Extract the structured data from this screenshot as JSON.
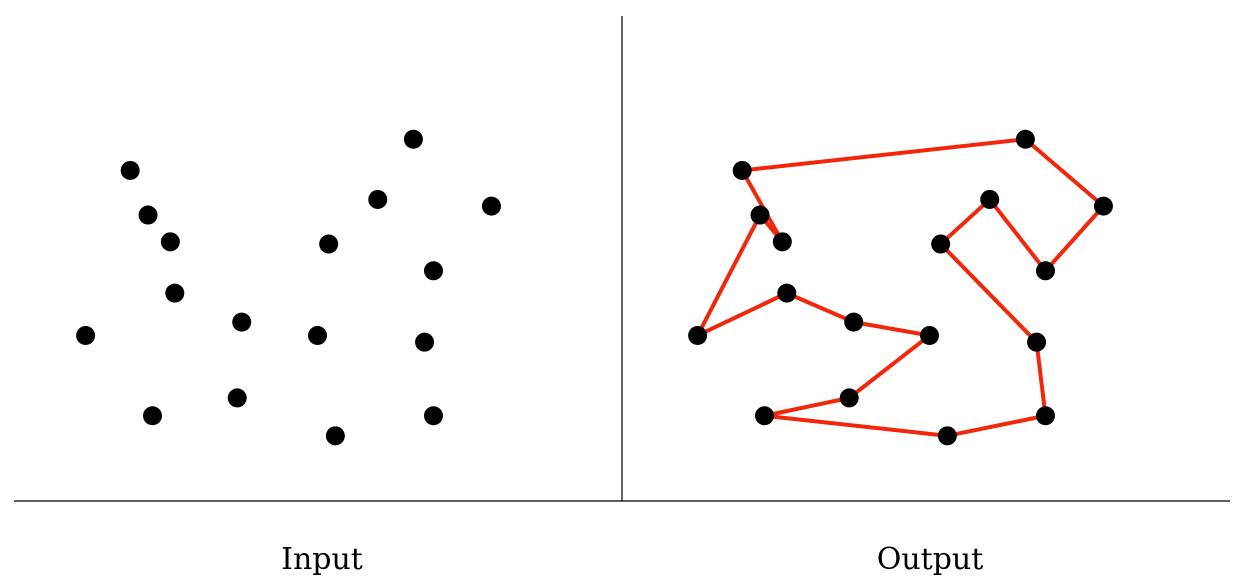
{
  "labels": {
    "input": "Input",
    "output": "Output"
  },
  "colors": {
    "point": "#000000",
    "tour": "#f2260a",
    "axis": "#000000"
  },
  "points": [
    {
      "id": "p1",
      "x": 1,
      "y": 6.2
    },
    {
      "id": "p2",
      "x": 2.9,
      "y": 8.3
    },
    {
      "id": "p3",
      "x": 2.0,
      "y": 9.9
    },
    {
      "id": "p4",
      "x": 8.35,
      "y": 10.6
    },
    {
      "id": "p5",
      "x": 10.1,
      "y": 9.1
    },
    {
      "id": "p6",
      "x": 8.8,
      "y": 7.65
    },
    {
      "id": "p7",
      "x": 7.55,
      "y": 9.25
    },
    {
      "id": "p8",
      "x": 6.45,
      "y": 8.25
    },
    {
      "id": "p9",
      "x": 8.6,
      "y": 6.05
    },
    {
      "id": "p10",
      "x": 8.8,
      "y": 4.4
    },
    {
      "id": "p11",
      "x": 6.6,
      "y": 3.95
    },
    {
      "id": "p12",
      "x": 2.5,
      "y": 4.4
    },
    {
      "id": "p13",
      "x": 4.4,
      "y": 4.8
    },
    {
      "id": "p14",
      "x": 6.2,
      "y": 6.2
    },
    {
      "id": "p15",
      "x": 4.5,
      "y": 6.5
    },
    {
      "id": "p16",
      "x": 3.0,
      "y": 7.15
    },
    {
      "id": "p17",
      "x": 2.4,
      "y": 8.9
    }
  ],
  "tour_order": [
    "p1",
    "p17",
    "p2",
    "p3",
    "p4",
    "p5",
    "p6",
    "p7",
    "p8",
    "p9",
    "p10",
    "p11",
    "p12",
    "p13",
    "p14",
    "p15",
    "p16",
    "p1"
  ]
}
